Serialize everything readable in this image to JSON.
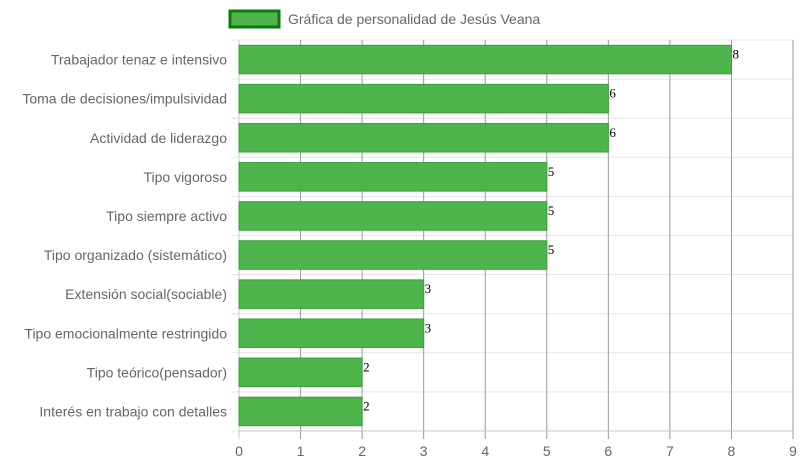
{
  "chart_data": {
    "type": "bar",
    "orientation": "horizontal",
    "categories": [
      "Trabajador tenaz e intensivo",
      "Toma de decisiones/impulsividad",
      "Actividad de liderazgo",
      "Tipo vigoroso",
      "Tipo siempre activo",
      "Tipo organizado (sistemático)",
      "Extensión social(sociable)",
      "Tipo emocionalmente restringido",
      "Tipo teórico(pensador)",
      "Interés en trabajo con detalles"
    ],
    "series": [
      {
        "name": "Gráfica de personalidad de Jesús Veana",
        "values": [
          8,
          6,
          6,
          5,
          5,
          5,
          3,
          3,
          2,
          2
        ]
      }
    ],
    "xlim": [
      0,
      9
    ],
    "xticks": [
      0,
      1,
      2,
      3,
      4,
      5,
      6,
      7,
      8,
      9
    ],
    "grid": true,
    "legend_position": "top-center",
    "data_labels": true
  },
  "colors": {
    "bar_fill": "#4db54b",
    "bar_border": "#3c9e3a",
    "legend_border": "#0a7a0a",
    "grid": "#e5e5e5",
    "grid_dark": "#9a9a9a",
    "axis": "#c8c8c8"
  }
}
